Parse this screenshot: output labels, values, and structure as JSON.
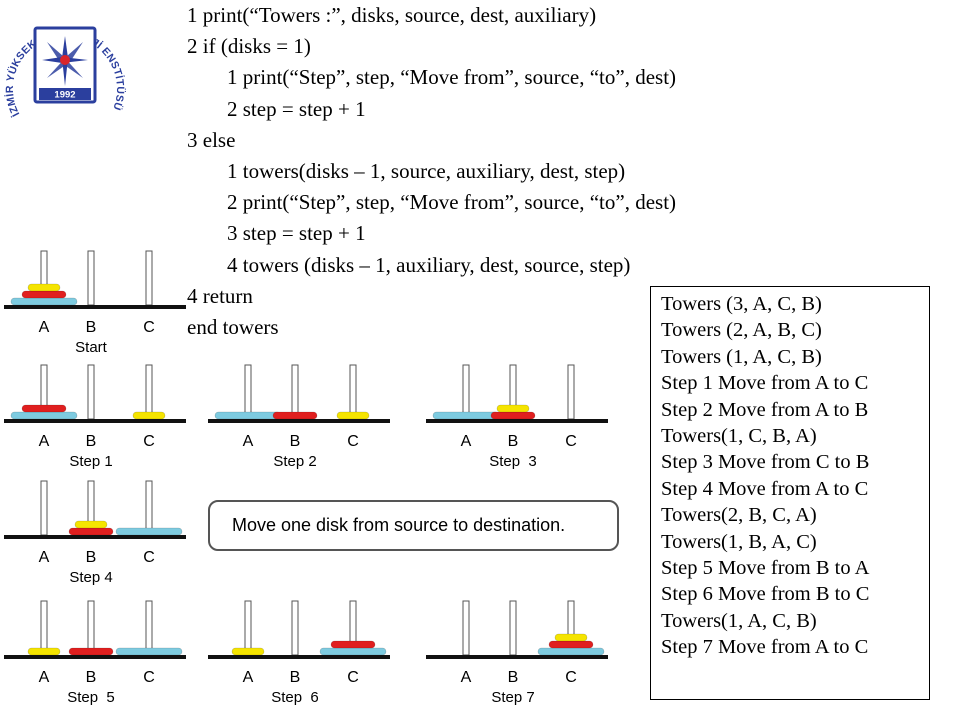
{
  "logo": {
    "arc_text": "İZMİR YÜKSEK TEKNOLOJİ ENSTİTÜSÜ",
    "year": "1992",
    "colors": {
      "blue": "#2b3f9e",
      "red": "#d9252b"
    }
  },
  "algorithm": {
    "lines": [
      {
        "text": "1 print(“Towers :”, disks, source, dest, auxiliary)",
        "indent": 0
      },
      {
        "text": "2 if (disks = 1)",
        "indent": 0
      },
      {
        "text": "1 print(“Step”, step, “Move from”, source, “to”, dest)",
        "indent": 1
      },
      {
        "text": "2 step = step + 1",
        "indent": 1
      },
      {
        "text": "3 else",
        "indent": 0
      },
      {
        "text": "1 towers(disks – 1, source, auxiliary, dest, step)",
        "indent": 1
      },
      {
        "text": "2 print(“Step”, step, “Move from”, source, “to”, dest)",
        "indent": 1
      },
      {
        "text": "3 step = step + 1",
        "indent": 1
      },
      {
        "text": "4 towers (disks – 1, auxiliary, dest, source, step)",
        "indent": 1
      },
      {
        "text": "4 return",
        "indent": 0
      },
      {
        "text": "end towers",
        "indent": 0
      }
    ]
  },
  "trace": [
    "Towers (3, A, C, B)",
    "Towers (2, A, B, C)",
    "Towers (1, A, C, B)",
    "Step 1 Move from A to C",
    "Step 2 Move from A to B",
    "Towers(1, C, B, A)",
    "Step 3 Move from C to B",
    "Step 4 Move from A to C",
    "Towers(2, B, C, A)",
    "Towers(1, B, A, C)",
    "Step 5 Move from B to A",
    "Step 6 Move from B to C",
    "Towers(1, A, C, B)",
    "Step 7 Move from A to C"
  ],
  "callout": "Move one disk from source to destination.",
  "disk_colors": {
    "small": "#f5e400",
    "medium": "#e01f1f",
    "large": "#7ecbe0"
  },
  "peg_labels": [
    "A",
    "B",
    "C"
  ],
  "puzzles": [
    {
      "caption": "Start",
      "pegs": [
        [
          "large",
          "medium",
          "small"
        ],
        [],
        []
      ]
    },
    {
      "caption": "Step 1",
      "pegs": [
        [
          "large",
          "medium"
        ],
        [],
        [
          "small"
        ]
      ]
    },
    {
      "caption": "Step 2",
      "pegs": [
        [
          "large"
        ],
        [
          "medium"
        ],
        [
          "small"
        ]
      ]
    },
    {
      "caption": "Step  3",
      "pegs": [
        [
          "large"
        ],
        [
          "medium",
          "small"
        ],
        []
      ]
    },
    {
      "caption": "Step 4",
      "pegs": [
        [],
        [
          "medium",
          "small"
        ],
        [
          "large"
        ]
      ]
    },
    {
      "caption": "Step  5",
      "pegs": [
        [
          "small"
        ],
        [
          "medium"
        ],
        [
          "large"
        ]
      ]
    },
    {
      "caption": "Step  6",
      "pegs": [
        [
          "small"
        ],
        [],
        [
          "large",
          "medium"
        ]
      ]
    },
    {
      "caption": "Step 7",
      "pegs": [
        [],
        [],
        [
          "large",
          "medium",
          "small"
        ]
      ]
    }
  ]
}
